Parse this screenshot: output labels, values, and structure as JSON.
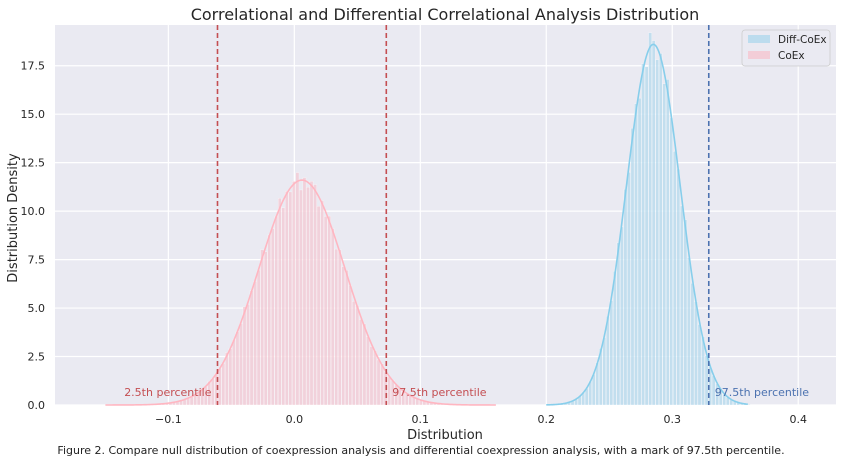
{
  "chart_data": {
    "type": "histogram+kde",
    "title": "Correlational and Differential Correlational Analysis Distribution",
    "xlabel": "Distribution",
    "ylabel": "Distribution Density",
    "xlim": [
      -0.19,
      0.43
    ],
    "ylim": [
      0,
      19.6
    ],
    "x_ticks": [
      -0.1,
      0.0,
      0.1,
      0.2,
      0.3,
      0.4
    ],
    "x_tick_labels": [
      "−0.1",
      "0.0",
      "0.1",
      "0.2",
      "0.3",
      "0.4"
    ],
    "y_ticks": [
      0.0,
      2.5,
      5.0,
      7.5,
      10.0,
      12.5,
      15.0,
      17.5
    ],
    "y_tick_labels": [
      "0.0",
      "2.5",
      "5.0",
      "7.5",
      "10.0",
      "12.5",
      "15.0",
      "17.5"
    ],
    "grid": true,
    "legend_position": "top-right",
    "series": [
      {
        "name": "Diff-CoEx",
        "color": "#87ceeb",
        "fill": "#bcdcee",
        "mean": 0.285,
        "std": 0.0214,
        "peak_density": 18.6,
        "bin_width": 0.0028,
        "range": [
          0.2,
          0.36
        ]
      },
      {
        "name": "CoEx",
        "color": "#ffb6c1",
        "fill": "#f3cdd7",
        "mean": 0.006,
        "std": 0.0342,
        "peak_density": 11.6,
        "bin_width": 0.0028,
        "range": [
          -0.15,
          0.16
        ]
      }
    ],
    "reference_lines": [
      {
        "x": -0.061,
        "color": "#c44e52",
        "label": "2.5th percentile",
        "label_side": "left"
      },
      {
        "x": 0.073,
        "color": "#c44e52",
        "label": "97.5th percentile",
        "label_side": "right"
      },
      {
        "x": 0.329,
        "color": "#4c72b0",
        "label": "97.5th percentile",
        "label_side": "right"
      }
    ]
  },
  "caption": "Figure 2. Compare null distribution of coexpression analysis and differential coexpression analysis, with a mark of 97.5th percentile."
}
